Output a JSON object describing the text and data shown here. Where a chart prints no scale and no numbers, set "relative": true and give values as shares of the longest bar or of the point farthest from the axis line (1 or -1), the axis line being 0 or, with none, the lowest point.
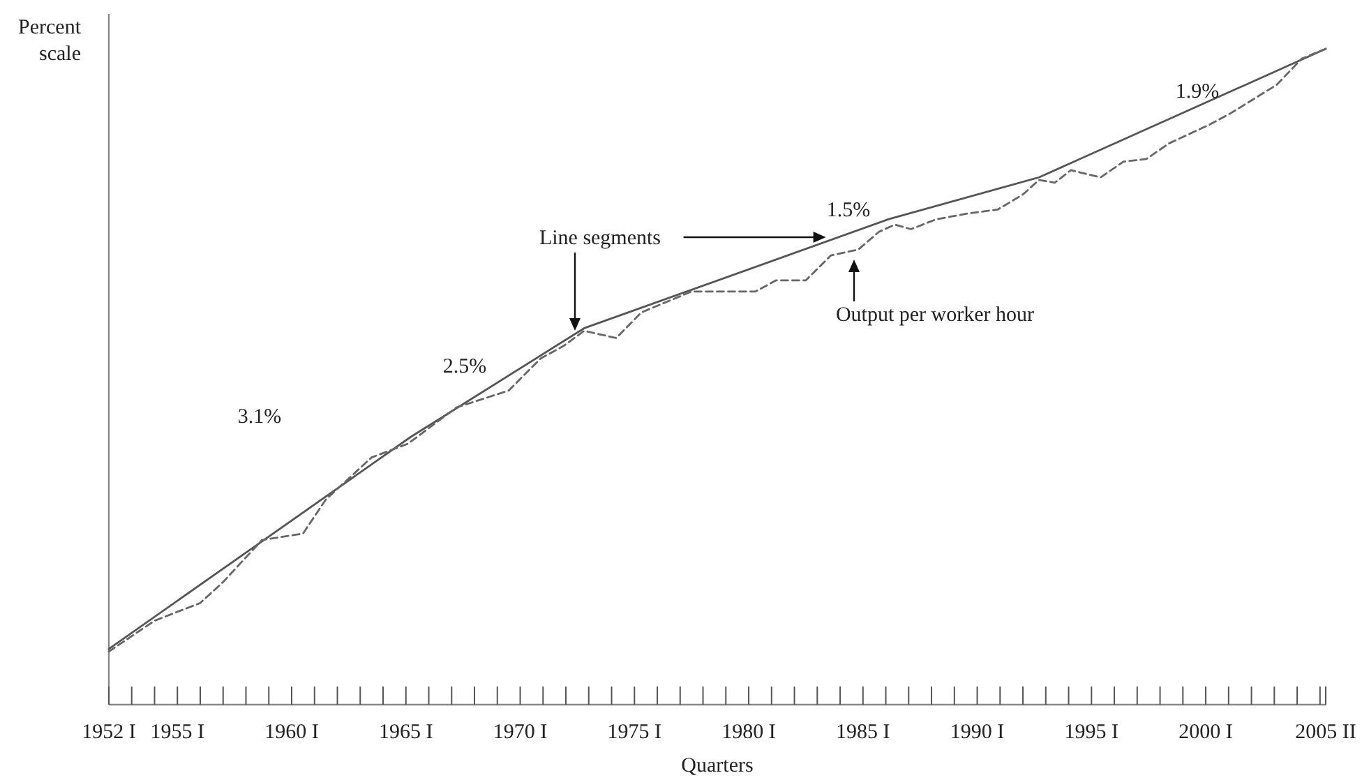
{
  "chart_data": {
    "type": "line",
    "relative": true,
    "xlabel": "Quarters",
    "ylabel": "Percent scale",
    "xlim": [
      1952,
      2005.25
    ],
    "xticks": [
      {
        "value": 1952,
        "label": "1952 I"
      },
      {
        "value": 1953,
        "label": null
      },
      {
        "value": 1954,
        "label": null
      },
      {
        "value": 1955,
        "label": "1955 I"
      },
      {
        "value": 1956,
        "label": null
      },
      {
        "value": 1957,
        "label": null
      },
      {
        "value": 1958,
        "label": null
      },
      {
        "value": 1959,
        "label": null
      },
      {
        "value": 1960,
        "label": "1960 I"
      },
      {
        "value": 1961,
        "label": null
      },
      {
        "value": 1962,
        "label": null
      },
      {
        "value": 1963,
        "label": null
      },
      {
        "value": 1964,
        "label": null
      },
      {
        "value": 1965,
        "label": "1965 I"
      },
      {
        "value": 1966,
        "label": null
      },
      {
        "value": 1967,
        "label": null
      },
      {
        "value": 1968,
        "label": null
      },
      {
        "value": 1969,
        "label": null
      },
      {
        "value": 1970,
        "label": "1970 I"
      },
      {
        "value": 1971,
        "label": null
      },
      {
        "value": 1972,
        "label": null
      },
      {
        "value": 1973,
        "label": null
      },
      {
        "value": 1974,
        "label": null
      },
      {
        "value": 1975,
        "label": "1975 I"
      },
      {
        "value": 1976,
        "label": null
      },
      {
        "value": 1977,
        "label": null
      },
      {
        "value": 1978,
        "label": null
      },
      {
        "value": 1979,
        "label": null
      },
      {
        "value": 1980,
        "label": "1980 I"
      },
      {
        "value": 1981,
        "label": null
      },
      {
        "value": 1982,
        "label": null
      },
      {
        "value": 1983,
        "label": null
      },
      {
        "value": 1984,
        "label": null
      },
      {
        "value": 1985,
        "label": "1985 I"
      },
      {
        "value": 1986,
        "label": null
      },
      {
        "value": 1987,
        "label": null
      },
      {
        "value": 1988,
        "label": null
      },
      {
        "value": 1989,
        "label": null
      },
      {
        "value": 1990,
        "label": "1990 I"
      },
      {
        "value": 1991,
        "label": null
      },
      {
        "value": 1992,
        "label": null
      },
      {
        "value": 1993,
        "label": null
      },
      {
        "value": 1994,
        "label": null
      },
      {
        "value": 1995,
        "label": "1995 I"
      },
      {
        "value": 1996,
        "label": null
      },
      {
        "value": 1997,
        "label": null
      },
      {
        "value": 1998,
        "label": null
      },
      {
        "value": 1999,
        "label": null
      },
      {
        "value": 2000,
        "label": "2000 I"
      },
      {
        "value": 2001,
        "label": null
      },
      {
        "value": 2002,
        "label": null
      },
      {
        "value": 2003,
        "label": null
      },
      {
        "value": 2004,
        "label": null
      },
      {
        "value": 2005,
        "label": null
      },
      {
        "value": 2005.25,
        "label": "2005 II"
      }
    ],
    "marker": "none",
    "grid": false,
    "series": [
      {
        "color": "#555555",
        "line_style": "solid",
        "x": [
          1952,
          1965.2,
          1972.8,
          1986.1,
          1992.7,
          2005.25
        ],
        "values": [
          0.085,
          0.408,
          0.574,
          0.74,
          0.804,
          1.0
        ]
      },
      {
        "color": "#666666",
        "line_style": "dashed",
        "x": [
          1952,
          1954,
          1956,
          1957,
          1958.7,
          1960.5,
          1961.5,
          1963.5,
          1965.1,
          1967.2,
          1969.5,
          1970.9,
          1971.9,
          1972.8,
          1974.2,
          1975.3,
          1977.5,
          1980.3,
          1981.2,
          1982.5,
          1983.6,
          1984.8,
          1985.7,
          1986.4,
          1987.1,
          1988.2,
          1989.6,
          1990.9,
          1992,
          1992.7,
          1993.4,
          1994.1,
          1995.4,
          1996.4,
          1997.4,
          1998.4,
          2000.2,
          2001.1,
          2003.1,
          2004.2,
          2005.25
        ],
        "values": [
          0.081,
          0.128,
          0.155,
          0.187,
          0.251,
          0.261,
          0.313,
          0.377,
          0.398,
          0.453,
          0.479,
          0.528,
          0.547,
          0.57,
          0.559,
          0.598,
          0.63,
          0.63,
          0.647,
          0.647,
          0.685,
          0.694,
          0.721,
          0.732,
          0.725,
          0.74,
          0.749,
          0.755,
          0.778,
          0.8,
          0.796,
          0.815,
          0.804,
          0.828,
          0.832,
          0.856,
          0.885,
          0.902,
          0.945,
          0.985,
          1.0
        ]
      }
    ],
    "annotations": [
      "3.1%",
      "2.5%",
      "1.5%",
      "1.9%",
      "Line segments",
      "Output per worker hour"
    ]
  }
}
